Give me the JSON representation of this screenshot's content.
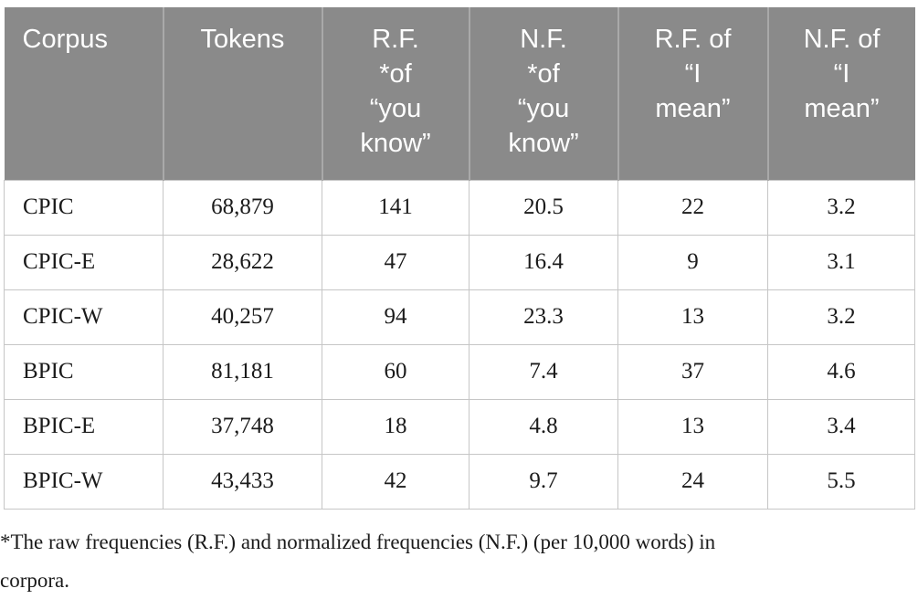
{
  "table": {
    "headers": [
      "Corpus",
      "Tokens",
      "R.F.\n*of\n“you\nknow”",
      "N.F.\n*of\n“you\nknow”",
      "R.F. of\n“I\nmean”",
      "N.F. of\n“I\nmean”"
    ],
    "rows": [
      [
        "CPIC",
        "68,879",
        "141",
        "20.5",
        "22",
        "3.2"
      ],
      [
        "CPIC-E",
        "28,622",
        "47",
        "16.4",
        "9",
        "3.1"
      ],
      [
        "CPIC-W",
        "40,257",
        "94",
        "23.3",
        "13",
        "3.2"
      ],
      [
        "BPIC",
        "81,181",
        "60",
        "7.4",
        "37",
        "4.6"
      ],
      [
        "BPIC-E",
        "37,748",
        "18",
        "4.8",
        "13",
        "3.4"
      ],
      [
        "BPIC-W",
        "43,433",
        "42",
        "9.7",
        "24",
        "5.5"
      ]
    ]
  },
  "footnote": "*The raw frequencies (R.F.) and normalized frequencies (N.F.) (per 10,000 words) in\ncorpora.",
  "colors": {
    "header_bg": "#8a8a8a",
    "header_text": "#ffffff",
    "header_divider": "#a9a9a9",
    "body_border": "#c6c6c6",
    "body_text": "#1b1b1b"
  }
}
